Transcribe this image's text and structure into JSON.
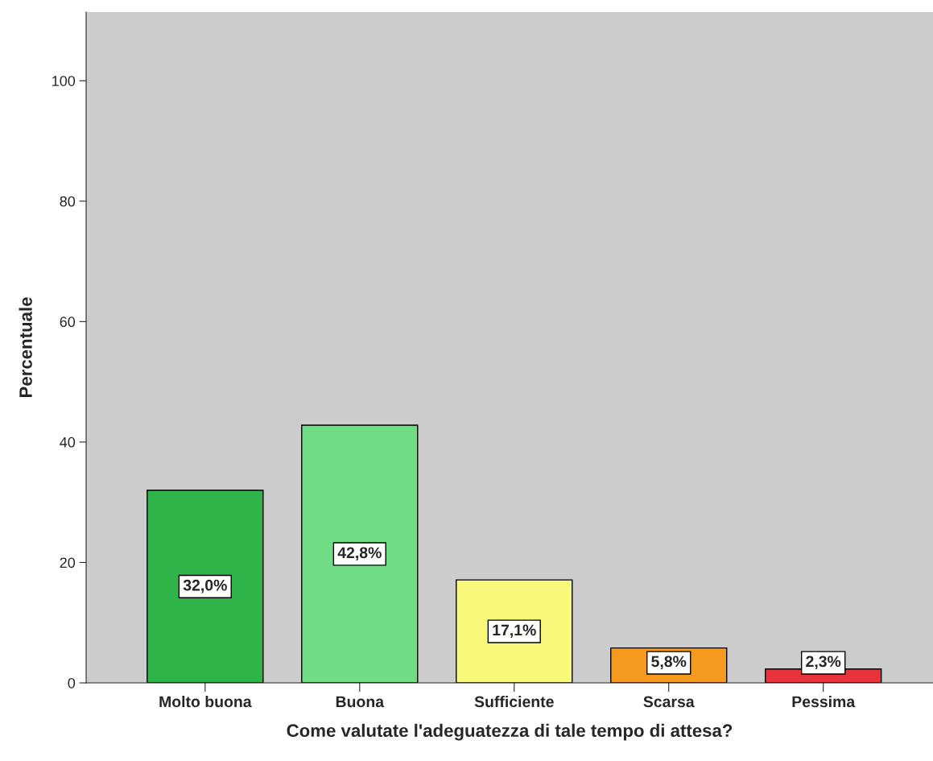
{
  "chart_data": {
    "type": "bar",
    "xlabel": "Come valutate l'adeguatezza di tale tempo di attesa?",
    "ylabel": "Percentuale",
    "categories": [
      "Molto buona",
      "Buona",
      "Sufficiente",
      "Scarsa",
      "Pessima"
    ],
    "values": [
      32.0,
      42.8,
      17.1,
      5.8,
      2.3
    ],
    "colors": [
      "#2fb44a",
      "#70dc84",
      "#f8f87a",
      "#f5991f",
      "#e8323c"
    ],
    "value_labels": [
      "32,0%",
      "42,8%",
      "17,1%",
      "5,8%",
      "2,3%"
    ],
    "ylim": [
      0,
      111.4
    ],
    "yticks": [
      0,
      20,
      40,
      60,
      80,
      100
    ]
  }
}
